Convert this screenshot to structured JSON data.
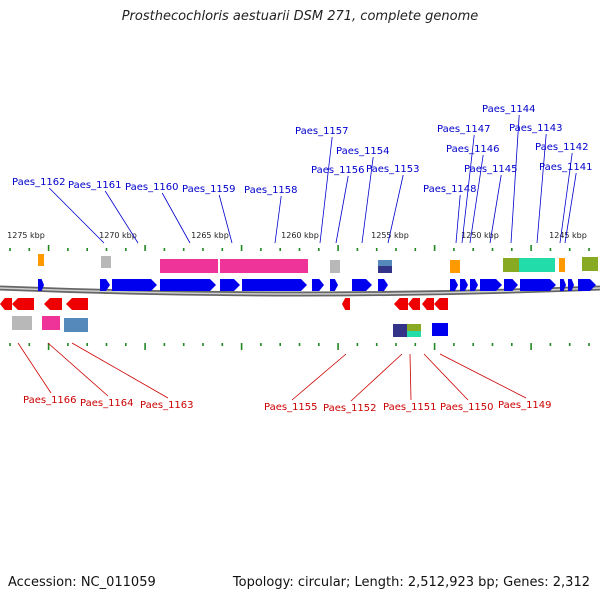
{
  "title": "Prosthecochloris aestuarii DSM 271, complete genome",
  "footer": {
    "accession": "Accession: NC_011059",
    "summary": "Topology: circular; Length: 2,512,923 bp; Genes: 2,312"
  },
  "colors": {
    "forward_gene": "#0000ee",
    "reverse_gene": "#ee0000",
    "forward_label": "#0000cc",
    "reverse_label": "#cc0000",
    "tick": "#228822",
    "backbone": "#888888",
    "rna_orange": "#ff9900",
    "feature_pink": "#ee3399",
    "feature_grey": "#b8b8b8",
    "feature_green": "#88aa22",
    "feature_teal": "#22ddaa",
    "feature_navy": "#333388",
    "feature_steel": "#5588bb"
  },
  "scale_labels": [
    "1275 kbp",
    "1270 kbp",
    "1265 kbp",
    "1260 kbp",
    "1255 kbp",
    "1250 kbp",
    "1245 kbp"
  ],
  "forward_labels": [
    "Paes_1162",
    "Paes_1161",
    "Paes_1160",
    "Paes_1159",
    "Paes_1158",
    "Paes_1157",
    "Paes_1156",
    "Paes_1154",
    "Paes_1153",
    "Paes_1148",
    "Paes_1147",
    "Paes_1146",
    "Paes_1145",
    "Paes_1144",
    "Paes_1143",
    "Paes_1142",
    "Paes_1141"
  ],
  "reverse_labels": [
    "Paes_1166",
    "Paes_1164",
    "Paes_1163",
    "Paes_1155",
    "Paes_1152",
    "Paes_1151",
    "Paes_1150",
    "Paes_1149"
  ]
}
